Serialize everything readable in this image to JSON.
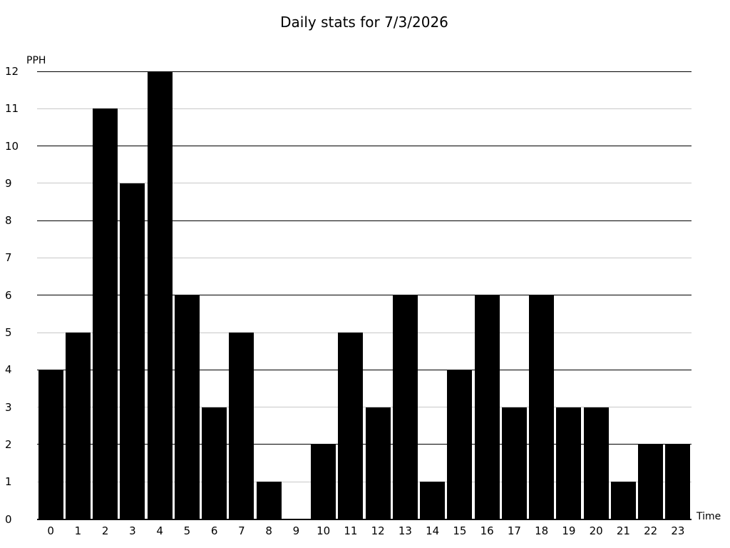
{
  "colors": {
    "background": "#ffffff",
    "bar": "#000000",
    "grid_even": "#000000",
    "grid_odd": "#c8c8c8",
    "axis": "#000000",
    "text": "#000000"
  },
  "chart_data": {
    "type": "bar",
    "title": "Daily stats for 7/3/2026",
    "xlabel": "Time",
    "ylabel": "PPH",
    "categories": [
      "0",
      "1",
      "2",
      "3",
      "4",
      "5",
      "6",
      "7",
      "8",
      "9",
      "10",
      "11",
      "12",
      "13",
      "14",
      "15",
      "16",
      "17",
      "18",
      "19",
      "20",
      "21",
      "22",
      "23"
    ],
    "values": [
      4,
      5,
      11,
      9,
      12,
      6,
      3,
      5,
      1,
      0,
      2,
      5,
      3,
      6,
      1,
      4,
      6,
      3,
      6,
      3,
      3,
      1,
      2,
      2
    ],
    "ylim": [
      0,
      12
    ],
    "yticks": [
      0,
      1,
      2,
      3,
      4,
      5,
      6,
      7,
      8,
      9,
      10,
      11,
      12
    ],
    "grid": "horizontal; black lines at even ticks, light gray lines at odd ticks",
    "legend_position": "none",
    "bar_color": "#000000"
  }
}
